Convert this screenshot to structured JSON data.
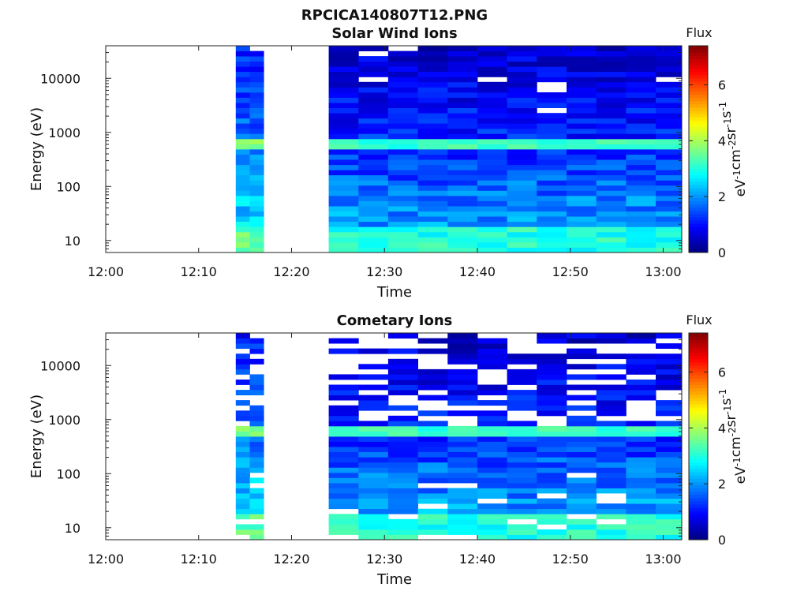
{
  "figure": {
    "filename_title": "RPCICA140807T12.PNG"
  },
  "colors": {
    "colormap": [
      "#00007f",
      "#0000ff",
      "#007fff",
      "#00ffff",
      "#7fff7f",
      "#ffff00",
      "#ff7f00",
      "#ff0000",
      "#7f0000"
    ]
  },
  "chart_data": [
    {
      "type": "heatmap",
      "title": "Solar Wind Ions",
      "xlabel": "Time",
      "ylabel": "Energy (eV)",
      "x_ticks": [
        "12:00",
        "12:10",
        "12:20",
        "12:30",
        "12:40",
        "12:50",
        "13:00"
      ],
      "xlim_minutes": [
        0,
        62
      ],
      "y_ticks": [
        "10",
        "100",
        "1000",
        "10000"
      ],
      "y_scale": "log",
      "ylim": [
        6,
        40000
      ],
      "colorbar": {
        "title": "Flux",
        "label_parts": [
          "eV",
          "-1",
          "cm",
          "-2",
          "sr",
          "-1",
          "s",
          "-1"
        ],
        "ticks": [
          "0",
          "2",
          "4",
          "6"
        ],
        "range": [
          0,
          7.4
        ]
      },
      "data_gaps_minutes": [
        [
          0,
          14
        ],
        [
          17,
          24
        ]
      ],
      "bright_band_energy_eV": 600,
      "seed": 7
    },
    {
      "type": "heatmap",
      "title": "Cometary Ions",
      "xlabel": "Time",
      "ylabel": "Energy (eV)",
      "x_ticks": [
        "12:00",
        "12:10",
        "12:20",
        "12:30",
        "12:40",
        "12:50",
        "13:00"
      ],
      "xlim_minutes": [
        0,
        62
      ],
      "y_ticks": [
        "10",
        "100",
        "1000",
        "10000"
      ],
      "y_scale": "log",
      "ylim": [
        6,
        40000
      ],
      "colorbar": {
        "title": "Flux",
        "label_parts": [
          "eV",
          "-1",
          "cm",
          "-2",
          "sr",
          "-1",
          "s",
          "-1"
        ],
        "ticks": [
          "0",
          "2",
          "4",
          "6"
        ],
        "range": [
          0,
          7.4
        ]
      },
      "data_gaps_minutes": [
        [
          0,
          14
        ],
        [
          17,
          24
        ]
      ],
      "bright_band_energy_eV": 600,
      "seed": 19
    }
  ]
}
